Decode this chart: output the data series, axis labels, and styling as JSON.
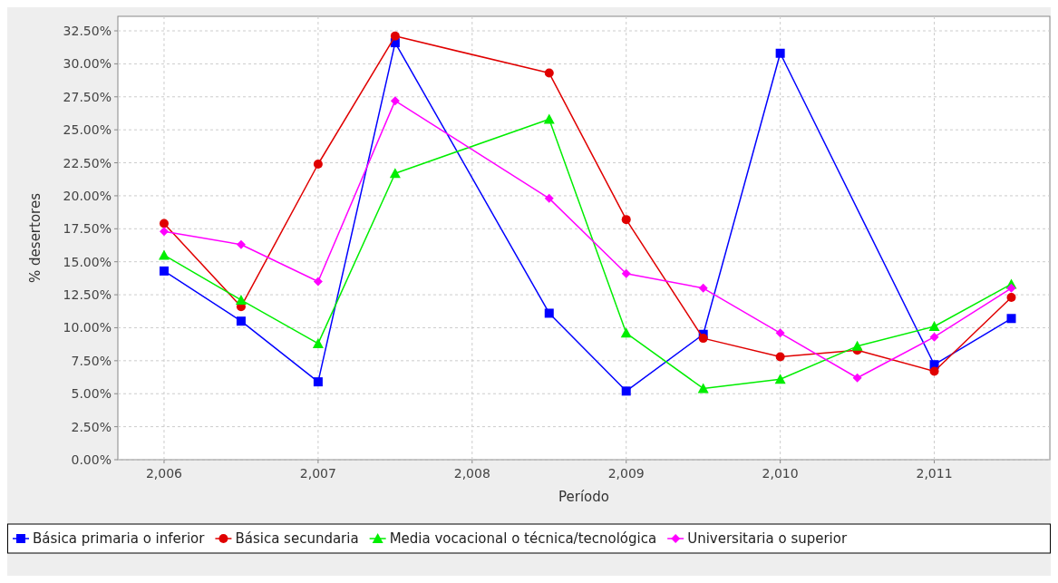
{
  "chart_data": {
    "type": "line",
    "xlabel": "Período",
    "ylabel": "% desertores",
    "xlim": [
      2005.7,
      2011.75
    ],
    "ylim": [
      0,
      33.6
    ],
    "xticks": [
      {
        "value": 2006,
        "label": "2,006"
      },
      {
        "value": 2007,
        "label": "2,007"
      },
      {
        "value": 2008,
        "label": "2,008"
      },
      {
        "value": 2009,
        "label": "2,009"
      },
      {
        "value": 2010,
        "label": "2,010"
      },
      {
        "value": 2011,
        "label": "2,011"
      }
    ],
    "yticks": [
      {
        "value": 0,
        "label": "0.00%"
      },
      {
        "value": 2.5,
        "label": "2.50%"
      },
      {
        "value": 5,
        "label": "5.00%"
      },
      {
        "value": 7.5,
        "label": "7.50%"
      },
      {
        "value": 10,
        "label": "10.00%"
      },
      {
        "value": 12.5,
        "label": "12.50%"
      },
      {
        "value": 15,
        "label": "15.00%"
      },
      {
        "value": 17.5,
        "label": "17.50%"
      },
      {
        "value": 20,
        "label": "20.00%"
      },
      {
        "value": 22.5,
        "label": "22.50%"
      },
      {
        "value": 25,
        "label": "25.00%"
      },
      {
        "value": 27.5,
        "label": "27.50%"
      },
      {
        "value": 30,
        "label": "30.00%"
      },
      {
        "value": 32.5,
        "label": "32.50%"
      }
    ],
    "grid": true,
    "legend": "bottom",
    "line_style": "solid",
    "series": [
      {
        "name": "Básica primaria o inferior",
        "color": "#0000ff",
        "marker": "square",
        "x": [
          2006,
          2006.5,
          2007,
          2007.5,
          2008.5,
          2009,
          2009.5,
          2010,
          2011,
          2011.5
        ],
        "values": [
          14.3,
          10.5,
          5.9,
          31.6,
          11.1,
          5.2,
          9.5,
          30.8,
          7.2,
          10.7
        ]
      },
      {
        "name": "Básica secundaria",
        "color": "#e00000",
        "marker": "circle",
        "x": [
          2006,
          2006.5,
          2007,
          2007.5,
          2008.5,
          2009,
          2009.5,
          2010,
          2010.5,
          2011,
          2011.5
        ],
        "values": [
          17.9,
          11.6,
          22.4,
          32.1,
          29.3,
          18.2,
          9.2,
          7.8,
          8.3,
          6.7,
          12.3
        ]
      },
      {
        "name": "Media vocacional o técnica/tecnológica",
        "color": "#00ee00",
        "marker": "triangle",
        "x": [
          2006,
          2006.5,
          2007,
          2007.5,
          2008.5,
          2009,
          2009.5,
          2010,
          2010.5,
          2011,
          2011.5
        ],
        "values": [
          15.5,
          12.1,
          8.8,
          21.7,
          25.8,
          9.6,
          5.4,
          6.1,
          8.6,
          10.1,
          13.3
        ]
      },
      {
        "name": "Universitaria o superior",
        "color": "#ff00ff",
        "marker": "diamond",
        "x": [
          2006,
          2006.5,
          2007,
          2007.5,
          2008.5,
          2009,
          2009.5,
          2010,
          2010.5,
          2011,
          2011.5
        ],
        "values": [
          17.3,
          16.3,
          13.5,
          27.2,
          19.8,
          14.1,
          13.0,
          9.6,
          6.2,
          9.3,
          13.0
        ]
      }
    ]
  }
}
